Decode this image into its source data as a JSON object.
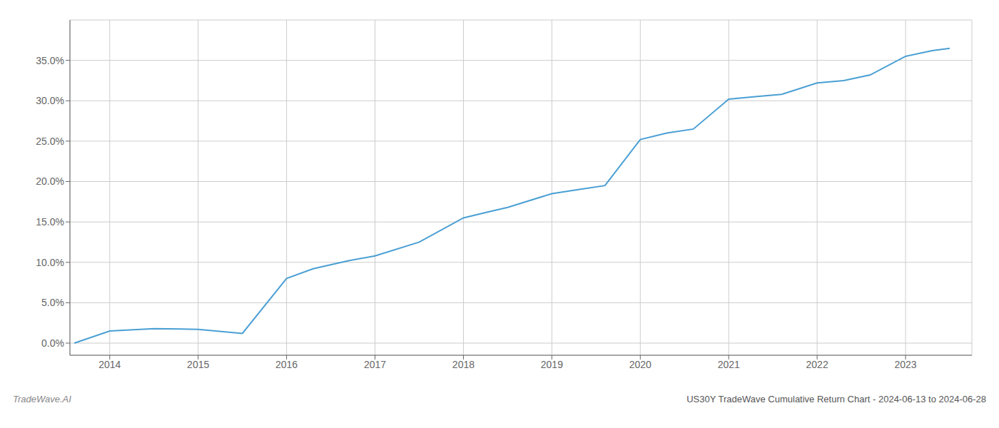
{
  "chart_data": {
    "type": "line",
    "title": "US30Y TradeWave Cumulative Return Chart - 2024-06-13 to 2024-06-28",
    "annotations": [
      "TradeWave.AI"
    ],
    "x": [
      2013.6,
      2014.0,
      2014.5,
      2015.0,
      2015.2,
      2015.5,
      2016.0,
      2016.3,
      2016.7,
      2017.0,
      2017.5,
      2018.0,
      2018.3,
      2018.5,
      2019.0,
      2019.3,
      2019.6,
      2020.0,
      2020.3,
      2020.6,
      2021.0,
      2021.3,
      2021.6,
      2022.0,
      2022.3,
      2022.6,
      2023.0,
      2023.3,
      2023.5
    ],
    "values": [
      0.0,
      1.5,
      1.8,
      1.7,
      1.5,
      1.2,
      8.0,
      9.2,
      10.2,
      10.8,
      12.5,
      15.5,
      16.3,
      16.8,
      18.5,
      19.0,
      19.5,
      25.2,
      26.0,
      26.5,
      30.2,
      30.5,
      30.8,
      32.2,
      32.5,
      33.2,
      35.5,
      36.2,
      36.5
    ],
    "color": "#4a9fd4",
    "xlim": [
      2013.55,
      2023.75
    ],
    "ylim": [
      -1.5,
      40.0
    ],
    "xticks": [
      2014,
      2015,
      2016,
      2017,
      2018,
      2019,
      2020,
      2021,
      2022,
      2023
    ],
    "yticks": [
      {
        "value": 0.0,
        "label": "0.0%"
      },
      {
        "value": 5.0,
        "label": "5.0%"
      },
      {
        "value": 10.0,
        "label": "10.0%"
      },
      {
        "value": 15.0,
        "label": "15.0%"
      },
      {
        "value": 20.0,
        "label": "20.0%"
      },
      {
        "value": 25.0,
        "label": "25.0%"
      },
      {
        "value": 30.0,
        "label": "30.0%"
      },
      {
        "value": 35.0,
        "label": "35.0%"
      }
    ],
    "grid": true
  }
}
